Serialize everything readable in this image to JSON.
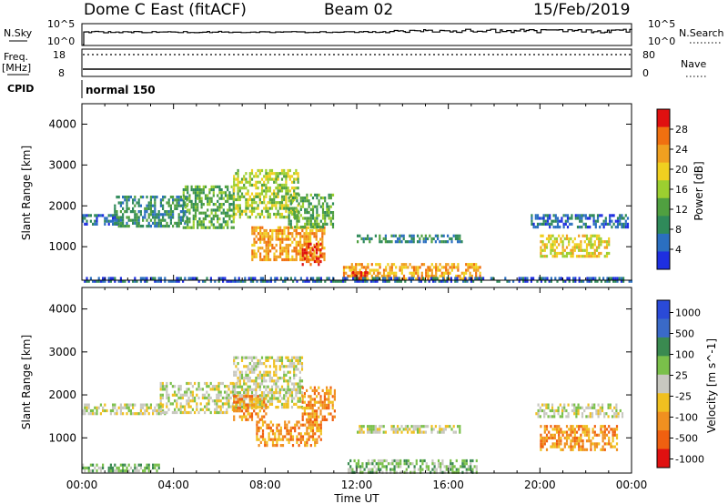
{
  "header": {
    "station": "Dome C East (fitACF)",
    "beam": "Beam 02",
    "date": "15/Feb/2019"
  },
  "status_panel": {
    "nsky_label": "N.Sky",
    "nsearch_label": "N.Search",
    "freq_label": "Freq.",
    "freq_unit": "[MHz]",
    "cpid_label": "CPID",
    "nave_label": "Nave",
    "left_top_tick_hi": "10^5",
    "left_top_tick_lo": "10^0",
    "right_top_tick_hi": "10^5",
    "right_top_tick_lo": "10^0",
    "freq_tick_hi": "18",
    "freq_tick_lo": "8",
    "nave_tick_hi": "80",
    "nave_tick_lo": "0",
    "cpid_value": "normal 150"
  },
  "colors": {
    "power_scale": [
      "#1e2fe0",
      "#2b6fc0",
      "#2f8a5a",
      "#50a040",
      "#9ccf30",
      "#f0d020",
      "#f0a020",
      "#f07010",
      "#e01010"
    ],
    "velocity_scale": [
      "#2a4ad8",
      "#3a6ac8",
      "#3a8a50",
      "#7ac04a",
      "#c8c8c0",
      "#f0c020",
      "#f09020",
      "#f06010",
      "#e01010"
    ]
  },
  "chart_data": [
    {
      "type": "heatmap",
      "panel": "power",
      "xlabel": "",
      "ylabel": "Slant Range [km]",
      "ylim": [
        180,
        4500
      ],
      "xlim": [
        0,
        24
      ],
      "y_ticks": [
        "1000",
        "2000",
        "3000",
        "4000"
      ],
      "colorbar_label": "Power [dB]",
      "colorbar_ticks": [
        "4",
        "8",
        "12",
        "16",
        "20",
        "24",
        "28"
      ],
      "regions": [
        {
          "t0": 0.0,
          "t1": 1.6,
          "r0": 1550,
          "r1": 1800,
          "level": 1
        },
        {
          "t0": 1.4,
          "t1": 4.6,
          "r0": 1500,
          "r1": 2250,
          "level": 2
        },
        {
          "t0": 4.4,
          "t1": 6.6,
          "r0": 1500,
          "r1": 2500,
          "level": 3
        },
        {
          "t0": 6.6,
          "t1": 9.4,
          "r0": 1700,
          "r1": 2900,
          "level": 4
        },
        {
          "t0": 7.4,
          "t1": 10.6,
          "r0": 700,
          "r1": 1500,
          "level": 6
        },
        {
          "t0": 9.6,
          "t1": 10.4,
          "r0": 600,
          "r1": 1100,
          "level": 8
        },
        {
          "t0": 9.0,
          "t1": 11.0,
          "r0": 1500,
          "r1": 2300,
          "level": 3
        },
        {
          "t0": 11.4,
          "t1": 17.4,
          "r0": 200,
          "r1": 600,
          "level": 6
        },
        {
          "t0": 11.8,
          "t1": 12.6,
          "r0": 200,
          "r1": 400,
          "level": 8
        },
        {
          "t0": 12.0,
          "t1": 16.6,
          "r0": 1150,
          "r1": 1300,
          "level": 2
        },
        {
          "t0": 19.6,
          "t1": 23.8,
          "r0": 1500,
          "r1": 1800,
          "level": 1
        },
        {
          "t0": 20.0,
          "t1": 23.0,
          "r0": 800,
          "r1": 1300,
          "level": 5
        },
        {
          "t0": 0.0,
          "t1": 24.0,
          "r0": 180,
          "r1": 260,
          "level": 1
        }
      ]
    },
    {
      "type": "heatmap",
      "panel": "velocity",
      "xlabel": "Time UT",
      "ylabel": "Slant Range [km]",
      "ylim": [
        180,
        4500
      ],
      "xlim": [
        0,
        24
      ],
      "x_ticks": [
        "00:00",
        "04:00",
        "08:00",
        "12:00",
        "16:00",
        "20:00",
        "00:00"
      ],
      "y_ticks": [
        "1000",
        "2000",
        "3000",
        "4000"
      ],
      "colorbar_label": "Velocity [m s^-1]",
      "colorbar_ticks": [
        "1000",
        "500",
        "100",
        "25",
        "-25",
        "-100",
        "-500",
        "-1000"
      ],
      "regions": [
        {
          "t0": 0.0,
          "t1": 3.6,
          "r0": 1550,
          "r1": 1800,
          "level": 4
        },
        {
          "t0": 3.4,
          "t1": 6.8,
          "r0": 1600,
          "r1": 2300,
          "level": 4
        },
        {
          "t0": 6.6,
          "t1": 9.6,
          "r0": 1700,
          "r1": 2900,
          "level": 4
        },
        {
          "t0": 6.6,
          "t1": 8.0,
          "r0": 1400,
          "r1": 2000,
          "level": 6
        },
        {
          "t0": 7.6,
          "t1": 10.4,
          "r0": 800,
          "r1": 1400,
          "level": 6
        },
        {
          "t0": 9.6,
          "t1": 11.0,
          "r0": 1400,
          "r1": 2200,
          "level": 6
        },
        {
          "t0": 11.6,
          "t1": 17.2,
          "r0": 200,
          "r1": 500,
          "level": 3
        },
        {
          "t0": 12.0,
          "t1": 16.6,
          "r0": 1150,
          "r1": 1300,
          "level": 4
        },
        {
          "t0": 19.8,
          "t1": 23.6,
          "r0": 1500,
          "r1": 1800,
          "level": 4
        },
        {
          "t0": 20.0,
          "t1": 23.4,
          "r0": 700,
          "r1": 1300,
          "level": 6
        },
        {
          "t0": 0.0,
          "t1": 3.4,
          "r0": 200,
          "r1": 400,
          "level": 3
        }
      ]
    }
  ]
}
